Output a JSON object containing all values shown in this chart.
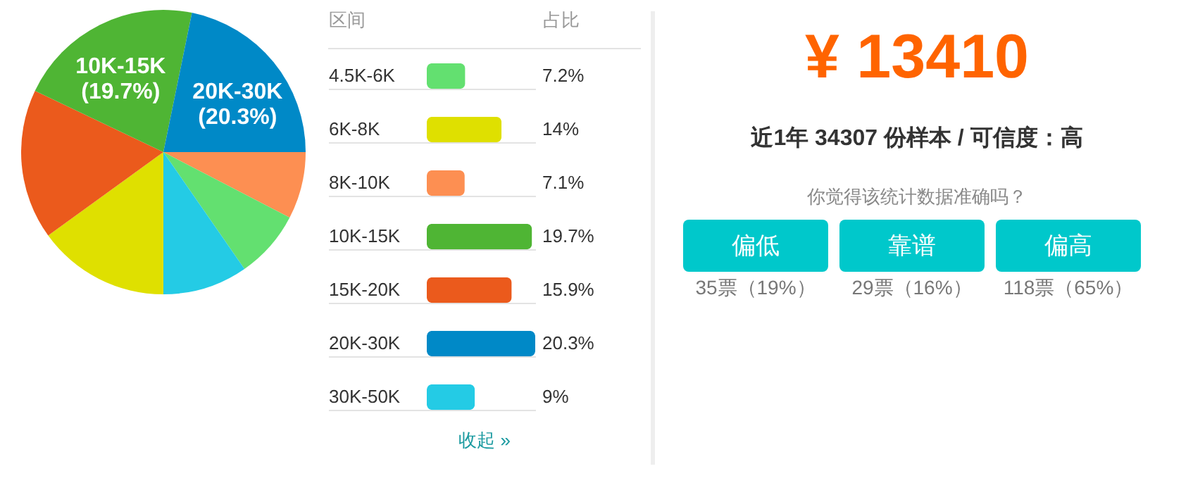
{
  "chart_data": [
    {
      "type": "pie",
      "categories": [
        null,
        null,
        null,
        null,
        null,
        "10K-15K",
        "20K-30K"
      ],
      "values": [
        7.1,
        7.2,
        9,
        14,
        15.9,
        19.7,
        20.3
      ],
      "colors": [
        "#fd8f52",
        "#63e070",
        "#24cbe5",
        "#dfe000",
        "#eb5a1c",
        "#4fb534",
        "#0089c7"
      ],
      "value_labels": [
        null,
        null,
        null,
        null,
        null,
        "(19.7%)",
        "(20.3%)"
      ]
    },
    {
      "type": "bar",
      "orientation": "horizontal",
      "ylabel": "区间",
      "xlabel": "占比",
      "categories": [
        "4.5K-6K",
        "6K-8K",
        "8K-10K",
        "10K-15K",
        "15K-20K",
        "20K-30K",
        "30K-50K"
      ],
      "values": [
        7.2,
        14,
        7.1,
        19.7,
        15.9,
        20.3,
        9
      ],
      "colors": [
        "#63e070",
        "#dfe000",
        "#fd8f52",
        "#4fb534",
        "#eb5a1c",
        "#0089c7",
        "#24cbe5"
      ],
      "value_labels": [
        "7.2%",
        "14%",
        "7.1%",
        "19.7%",
        "15.9%",
        "20.3%",
        "9%"
      ],
      "grid": "y",
      "tick_labels": "y",
      "annotations": [
        "收起 »"
      ]
    },
    {
      "type": "other",
      "title": "¥ 13410",
      "subtitle": "近1年 34307 份样本 / 可信度：高",
      "annotations": [
        "你觉得该统计数据准确吗？",
        "偏低",
        "靠谱",
        "偏高",
        "35票（19%）",
        "29票（16%）",
        "118票（65%）"
      ]
    }
  ]
}
